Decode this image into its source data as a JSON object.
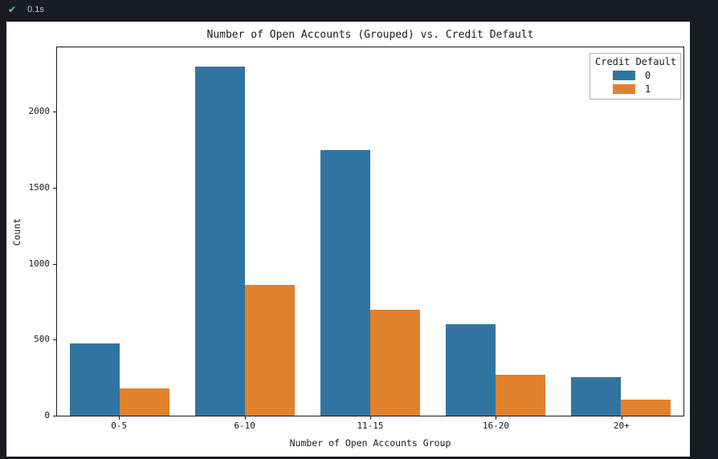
{
  "status": {
    "check_icon": "✔",
    "duration": "0.1s"
  },
  "chart_data": {
    "type": "bar",
    "title": "Number of Open Accounts (Grouped) vs. Credit Default",
    "xlabel": "Number of Open Accounts Group",
    "ylabel": "Count",
    "categories": [
      "0-5",
      "6-10",
      "11-15",
      "16-20",
      "20+"
    ],
    "series": [
      {
        "name": "0",
        "color": "#3274a1",
        "values": [
          475,
          2300,
          1750,
          600,
          255
        ]
      },
      {
        "name": "1",
        "color": "#e1812c",
        "values": [
          180,
          860,
          700,
          270,
          105
        ]
      }
    ],
    "yticks": [
      0,
      500,
      1000,
      1500,
      2000
    ],
    "ylim": [
      0,
      2425
    ],
    "grid": false,
    "legend": {
      "title": "Credit Default",
      "position": "upper right"
    },
    "colors": {
      "figure_background": "#ffffff",
      "page_background": "#191b20",
      "success_green": "#73c991"
    }
  }
}
